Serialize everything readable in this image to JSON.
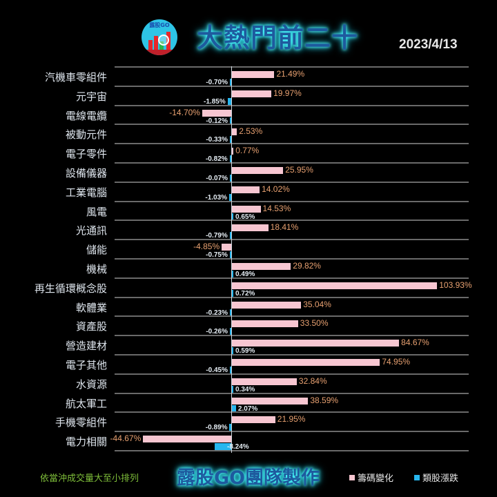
{
  "header": {
    "logo_text": "露股GO",
    "title": "大熱門前二十",
    "date": "2023/4/13"
  },
  "footer": {
    "note": "依當沖成交量大至小排列",
    "brand": "露股GO團隊製作",
    "legend": [
      {
        "label": "籌碼變化",
        "color": "#f7c6d1"
      },
      {
        "label": "類股漲跌",
        "color": "#27b6ee"
      }
    ]
  },
  "chart_data": {
    "type": "bar",
    "orientation": "horizontal",
    "title": "大熱門前二十",
    "subtitle": "2023/4/13",
    "categories": [
      "汽機車零組件",
      "元宇宙",
      "電線電纜",
      "被動元件",
      "電子零件",
      "設備儀器",
      "工業電腦",
      "風電",
      "光通訊",
      "儲能",
      "機械",
      "再生循環概念股",
      "軟體業",
      "資產股",
      "營造建材",
      "電子其他",
      "水資源",
      "航太軍工",
      "手機零組件",
      "電力相關"
    ],
    "series": [
      {
        "name": "籌碼變化",
        "color": "#f7c6d1",
        "unit": "%",
        "values": [
          21.49,
          19.97,
          -14.7,
          2.53,
          0.77,
          25.95,
          14.02,
          14.53,
          18.41,
          -4.85,
          29.82,
          103.93,
          35.04,
          33.5,
          84.67,
          74.95,
          32.84,
          38.59,
          21.95,
          -44.67
        ]
      },
      {
        "name": "類股漲跌",
        "color": "#27b6ee",
        "unit": "%",
        "values": [
          -0.7,
          -1.85,
          -0.12,
          -0.33,
          -0.82,
          -0.07,
          -1.03,
          0.65,
          -0.79,
          -0.75,
          0.49,
          0.72,
          -0.23,
          -0.26,
          0.59,
          -0.45,
          0.34,
          2.07,
          -0.89,
          -8.24
        ]
      }
    ],
    "labels": {
      "籌碼變化": [
        "21.49%",
        "19.97%",
        "-14.70%",
        "2.53%",
        "0.77%",
        "25.95%",
        "14.02%",
        "14.53%",
        "18.41%",
        "-4.85%",
        "29.82%",
        "103.93%",
        "35.04%",
        "33.50%",
        "84.67%",
        "74.95%",
        "32.84%",
        "38.59%",
        "21.95%",
        "-44.67%"
      ],
      "類股漲跌": [
        "-0.70%",
        "-1.85%",
        "-0.12%",
        "-0.33%",
        "-0.82%",
        "-0.07%",
        "-1.03%",
        "0.65%",
        "-0.79%",
        "-0.75%",
        "0.49%",
        "0.72%",
        "-0.23%",
        "-0.26%",
        "0.59%",
        "-0.45%",
        "0.34%",
        "2.07%",
        "-0.89%",
        "-8.24%"
      ]
    },
    "xlabel": "",
    "ylabel": "",
    "xlim": [
      -60,
      120
    ],
    "grid": true,
    "legend_position": "bottom-right",
    "sort_note": "依當沖成交量大至小排列"
  }
}
